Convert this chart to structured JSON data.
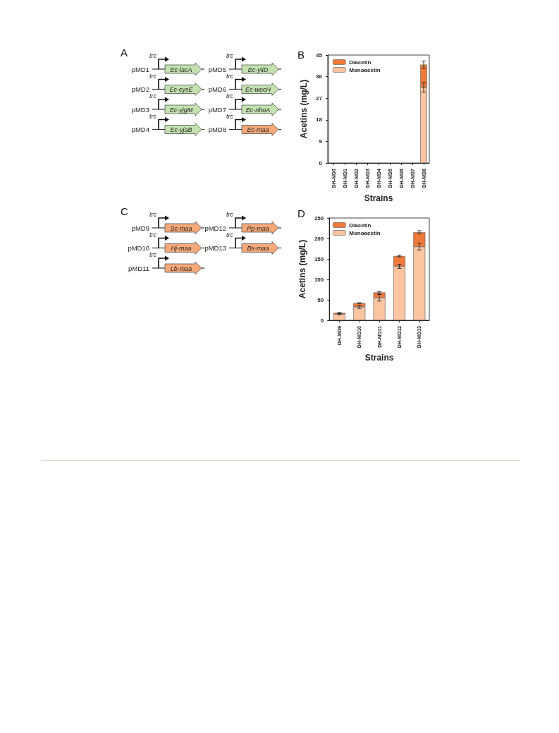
{
  "chart_data": [
    {
      "type": "other",
      "title": "A",
      "annotations": [
        "pMD1",
        "trc",
        "Ec-lacA",
        "pMD2",
        "trc",
        "Ec-cysE",
        "pMD3",
        "trc",
        "Ec-yjgM",
        "pMD4",
        "trc",
        "Ec-yjaB",
        "pMD5",
        "trc",
        "Ec-yiiD",
        "pMD6",
        "trc",
        "Ec-wecH",
        "pMD7",
        "trc",
        "Ec-nhoA",
        "pMD8",
        "trc",
        "Ec-maa"
      ],
      "colors": [
        "#c3e2b0",
        "#c3e2b0",
        "#c3e2b0",
        "#c3e2b0",
        "#c3e2b0",
        "#c3e2b0",
        "#c3e2b0",
        "#f5a878"
      ]
    },
    {
      "type": "bar",
      "title": "B",
      "xlabel": "Strains",
      "ylabel": "Acetins (mg/L)",
      "categories": [
        "DH-MD0",
        "DH-MD1",
        "DH-MD2",
        "DH-MD3",
        "DH-MD4",
        "DH-MD5",
        "DH-MD6",
        "DH-MD7",
        "DH-MD8"
      ],
      "series": [
        {
          "name": "Monoacetin",
          "color": "#fbc5a2",
          "values": [
            0,
            0,
            0,
            0,
            0,
            0,
            0,
            0,
            31.5
          ],
          "errors": [
            null,
            null,
            null,
            null,
            null,
            null,
            null,
            null,
            2
          ]
        },
        {
          "name": "Diacetin",
          "color": "#f07a3a",
          "values": [
            0,
            0,
            0,
            0,
            0,
            0,
            0,
            0,
            9.5
          ],
          "errors": [
            null,
            null,
            null,
            null,
            null,
            null,
            null,
            null,
            1.5
          ]
        }
      ],
      "stacked": true,
      "ylim": [
        0,
        45
      ],
      "yticks": [
        0,
        9,
        18,
        27,
        36,
        45
      ],
      "legend": "top left",
      "grid": false
    },
    {
      "type": "other",
      "title": "C",
      "annotations": [
        "pMD9",
        "trc",
        "Sc-maa",
        "pMD10",
        "trc",
        "Hj-maa",
        "pMD11",
        "trc",
        "Lb-maa",
        "pMD12",
        "trc",
        "Pp-maa",
        "pMD13",
        "trc",
        "Bs-maa"
      ],
      "colors": [
        "#f5a878",
        "#f5a878",
        "#f5a878",
        "#f5a878",
        "#f5a878"
      ]
    },
    {
      "type": "bar",
      "title": "D",
      "xlabel": "Strains",
      "ylabel": "Acetins (mg/L)",
      "categories": [
        "DH-MD9",
        "DH-MD10",
        "DH-MD11",
        "DH-MD12",
        "DH-MD13"
      ],
      "series": [
        {
          "name": "Monoacetin",
          "color": "#fbc5a2",
          "values": [
            15,
            33,
            55,
            132,
            180
          ],
          "errors": [
            1.5,
            4,
            8,
            5,
            8
          ]
        },
        {
          "name": "Diacetin",
          "color": "#f07a3a",
          "values": [
            3,
            9,
            13,
            25,
            35
          ],
          "errors": [
            1,
            1,
            2,
            2,
            4
          ]
        }
      ],
      "stacked": true,
      "ylim": [
        0,
        250
      ],
      "yticks": [
        0,
        50,
        100,
        150,
        200,
        250
      ],
      "legend": "top left",
      "grid": false
    }
  ]
}
